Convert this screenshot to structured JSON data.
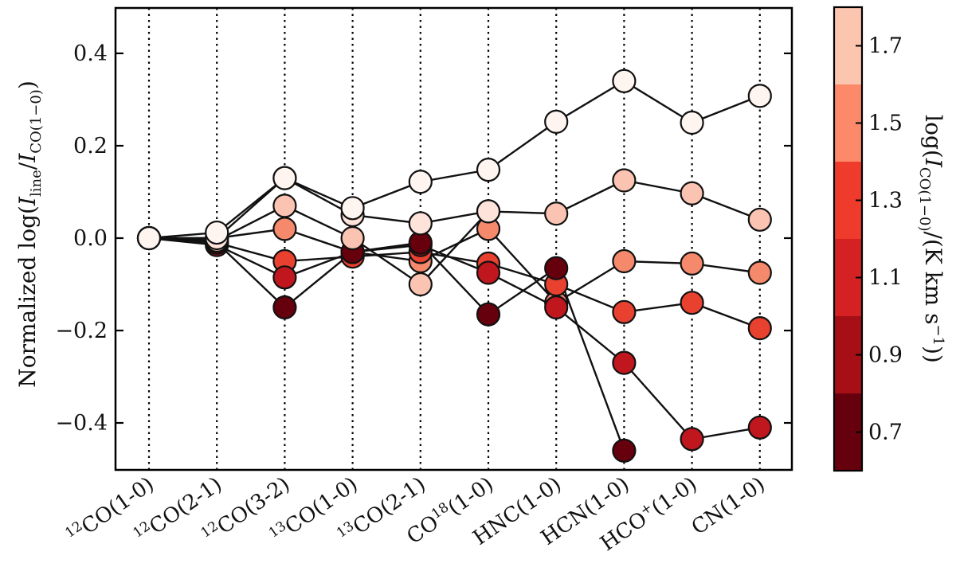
{
  "chart_data": {
    "type": "line",
    "ylabel": "Normalized log(I_line/I_CO(1-0))",
    "ylabel_parts": {
      "prefix": "Normalized log(",
      "i1": "I",
      "s1": "line",
      "slash": "/",
      "i2": "I",
      "s2": "CO(1−0)",
      "suffix": ")"
    },
    "ylim": [
      -0.5,
      0.5
    ],
    "yticks": [
      -0.4,
      -0.2,
      0.0,
      0.2,
      0.4
    ],
    "ytick_labels": [
      "−0.4",
      "−0.2",
      "0.0",
      "0.2",
      "0.4"
    ],
    "categories": [
      {
        "sup": "12",
        "text": "CO(1-0)"
      },
      {
        "sup": "12",
        "text": "CO(2-1)"
      },
      {
        "sup": "12",
        "text": "CO(3-2)"
      },
      {
        "sup": "13",
        "text": "CO(1-0)"
      },
      {
        "sup": "13",
        "text": "CO(2-1)"
      },
      {
        "pre": "CO",
        "sup": "18",
        "text": "(1-0)"
      },
      {
        "text": "HNC(1-0)"
      },
      {
        "text": "HCN(1-0)"
      },
      {
        "pre": "HCO",
        "sup": "+",
        "text": "(1-0)"
      },
      {
        "text": "CN(1-0)"
      }
    ],
    "grid": "vertical dotted lines at each category",
    "series": [
      {
        "bin": 5,
        "values": [
          0.0,
          0.0,
          0.02,
          -0.03,
          -0.05,
          0.02,
          -0.14,
          -0.05,
          -0.055,
          -0.075
        ]
      },
      {
        "bin": 4,
        "values": [
          0.0,
          -0.01,
          -0.05,
          -0.04,
          -0.03,
          -0.055,
          -0.1,
          -0.16,
          -0.14,
          -0.195
        ]
      },
      {
        "bin": 3,
        "values": [
          0.0,
          -0.015,
          -0.085,
          -0.03,
          -0.015,
          -0.075,
          -0.15,
          -0.27,
          -0.435,
          -0.41
        ]
      },
      {
        "bin": 2,
        "values": [
          0.0,
          -0.01,
          -0.15,
          -0.03,
          -0.01,
          -0.165,
          -0.065,
          -0.46,
          null,
          null
        ]
      },
      {
        "bin": 6,
        "values": [
          0.0,
          -0.005,
          0.07,
          0.0,
          -0.1,
          0.058,
          0.053,
          0.125,
          0.097,
          0.04
        ]
      },
      {
        "bin": 7,
        "values": [
          0.0,
          0.0,
          0.13,
          0.05,
          0.032,
          0.058,
          null,
          null,
          null,
          null
        ]
      },
      {
        "bin": 8,
        "values": [
          0.0,
          0.012,
          0.13,
          0.065,
          0.122,
          0.148,
          0.252,
          0.34,
          0.25,
          0.308
        ]
      }
    ],
    "colorbar": {
      "label": "log(I_CO(1-0)/(K km s^-1))",
      "label_parts": {
        "prefix": "log(",
        "i": "I",
        "sub": "CO(1−0)",
        "mid": "/(K km s",
        "sup": "−1",
        "suffix": "))"
      },
      "range": [
        0.6,
        1.8
      ],
      "bins": [
        0.6,
        0.8,
        1.0,
        1.2,
        1.4,
        1.6,
        1.8
      ],
      "colors": [
        "#67000d",
        "#a50f15",
        "#d42124",
        "#ef3b2c",
        "#fc8a6a",
        "#fcc5b0",
        "#fff5f0"
      ],
      "ticks": [
        0.7,
        0.9,
        1.1,
        1.3,
        1.5,
        1.7
      ],
      "tick_labels": [
        "0.7",
        "0.9",
        "1.1",
        "1.3",
        "1.5",
        "1.7"
      ]
    },
    "marker_colors": {
      "2": "#67000d",
      "3": "#c0161e",
      "4": "#e8412f",
      "5": "#f4896c",
      "6": "#fbc4b2",
      "7": "#fde3da",
      "8": "#fff5f0"
    }
  }
}
